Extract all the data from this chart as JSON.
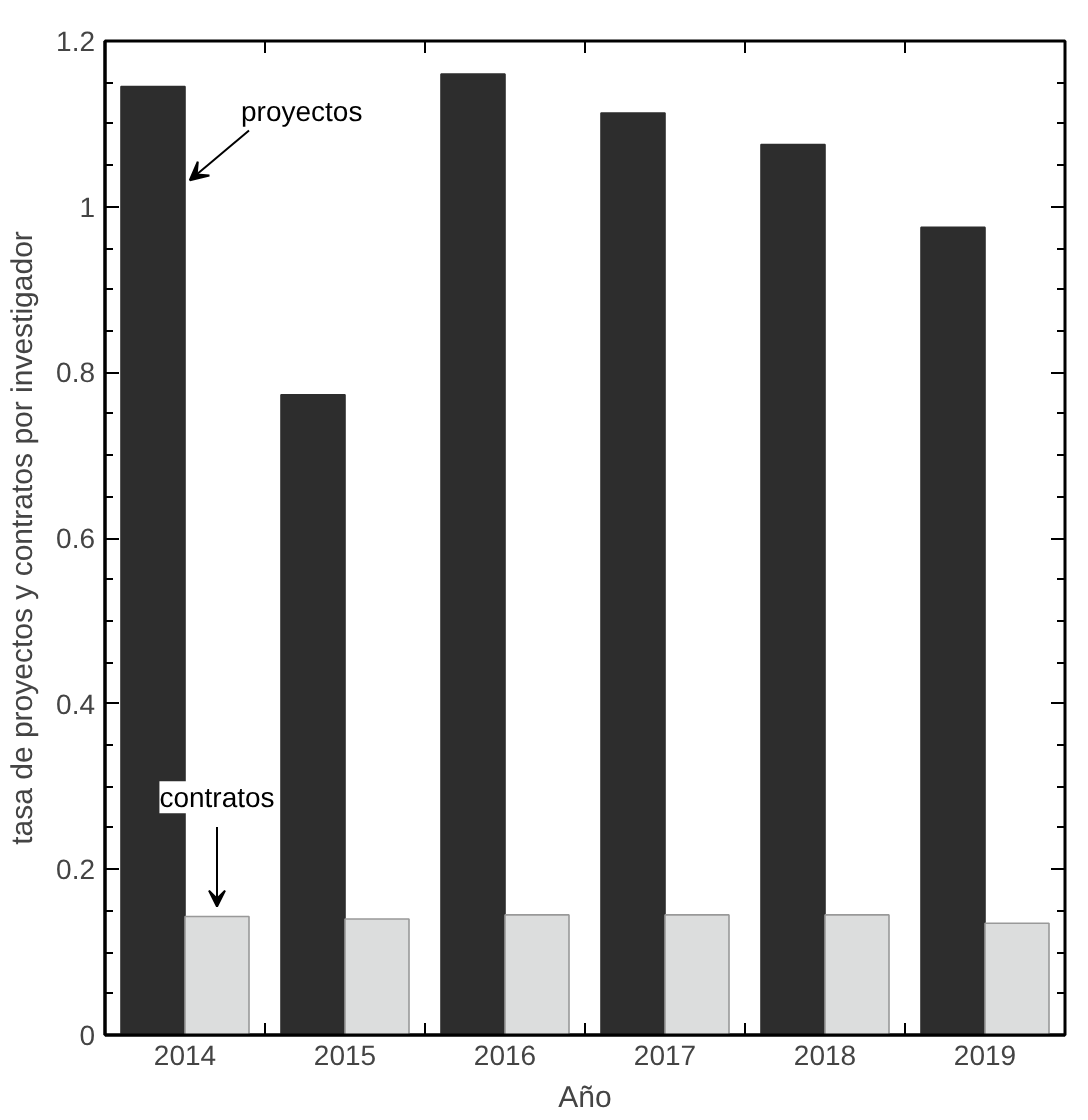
{
  "chart_data": {
    "type": "bar",
    "xlabel": "Año",
    "ylabel": "tasa de proyectos y contratos por investigador",
    "categories": [
      "2014",
      "2015",
      "2016",
      "2017",
      "2018",
      "2019"
    ],
    "series": [
      {
        "name": "proyectos",
        "color": "#2d2d2d",
        "values": [
          1.145,
          0.773,
          1.16,
          1.113,
          1.075,
          0.975
        ]
      },
      {
        "name": "contratos",
        "color": "#dcdddd",
        "values": [
          0.143,
          0.14,
          0.145,
          0.145,
          0.145,
          0.135
        ]
      }
    ],
    "ylim": [
      0,
      1.2
    ],
    "yticks": [
      0,
      0.2,
      0.4,
      0.6,
      0.8,
      1,
      1.2
    ],
    "grid": false,
    "legend": false
  }
}
